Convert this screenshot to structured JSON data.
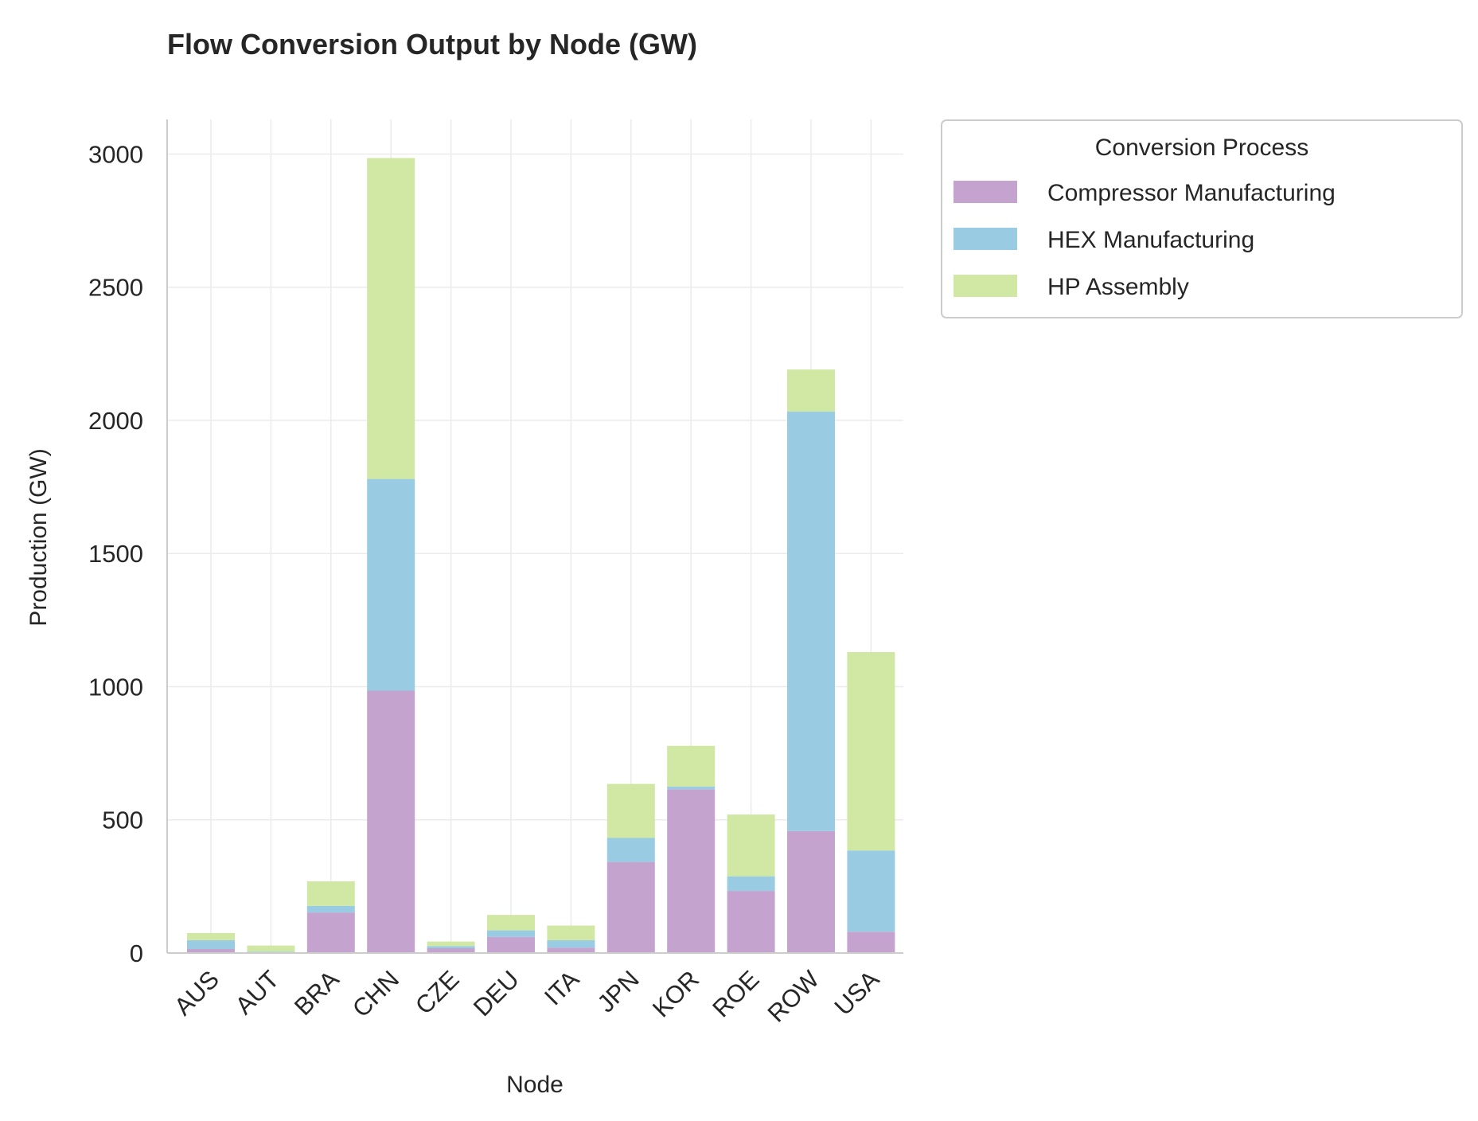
{
  "chart_data": {
    "type": "bar",
    "stacked": true,
    "title": "Flow Conversion Output by Node (GW)",
    "xlabel": "Node",
    "ylabel": "Production (GW)",
    "ylim": [
      0,
      3130
    ],
    "yticks": [
      0,
      500,
      1000,
      1500,
      2000,
      2500,
      3000
    ],
    "grid": true,
    "categories": [
      "AUS",
      "AUT",
      "BRA",
      "CHN",
      "CZE",
      "DEU",
      "ITA",
      "JPN",
      "KOR",
      "ROE",
      "ROW",
      "USA"
    ],
    "legend": {
      "title": "Conversion Process",
      "placement": "outside-top-right"
    },
    "series": [
      {
        "name": "Compressor Manufacturing",
        "color": "#C5A3CF",
        "values": [
          15,
          3,
          152,
          985,
          18,
          60,
          20,
          342,
          615,
          233,
          458,
          80
        ]
      },
      {
        "name": "HEX Manufacturing",
        "color": "#99CCE2",
        "values": [
          33,
          2,
          25,
          795,
          8,
          25,
          28,
          90,
          10,
          55,
          1575,
          305
        ]
      },
      {
        "name": "HP Assembly",
        "color": "#D0E8A3",
        "values": [
          27,
          23,
          92,
          1205,
          17,
          58,
          55,
          203,
          153,
          232,
          158,
          745
        ]
      }
    ]
  }
}
